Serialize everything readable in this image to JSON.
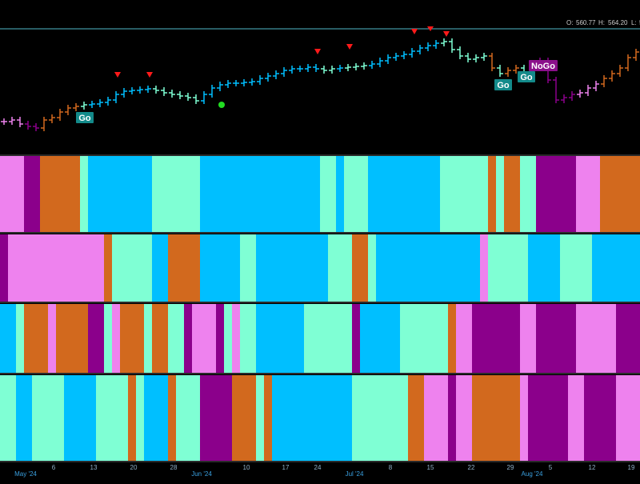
{
  "header": {
    "open_label": "O:",
    "open": "560.77",
    "high_label": "H:",
    "high": "564.20",
    "low_label": "L:",
    "low": "5"
  },
  "price_chart": {
    "ylim": [
      485.2,
      582.2
    ],
    "closes": [
      506.2,
      507.2,
      504.7,
      503.2,
      502.2,
      507.2,
      508.7,
      512.2,
      514.7,
      515.7,
      516.7,
      517.2,
      518.2,
      519.7,
      523.2,
      525.2,
      525.7,
      526.2,
      526.7,
      525.7,
      524.2,
      523.2,
      522.2,
      521.2,
      519.2,
      523.2,
      527.2,
      529.2,
      530.2,
      530.2,
      530.7,
      531.2,
      533.2,
      534.7,
      536.2,
      538.2,
      539.2,
      539.2,
      540.2,
      539.2,
      538.2,
      539.2,
      539.7,
      540.2,
      540.7,
      541.2,
      542.2,
      544.2,
      546.2,
      547.2,
      548.2,
      550.2,
      552.2,
      553.7,
      555.2,
      556.2,
      551.2,
      547.2,
      545.2,
      546.2,
      547.2,
      539.7,
      536.2,
      538.2,
      539.7,
      537.2,
      542.2,
      544.2,
      532.2,
      519.7,
      521.2,
      523.2,
      524.2,
      527.2,
      529.7,
      533.2,
      536.2,
      539.7,
      546.2,
      549.7
    ]
  },
  "signals": [
    "Go",
    "Go",
    "Go",
    "NoGo"
  ],
  "panels": [
    [
      {
        "color": "#ee82ee",
        "days": 3
      },
      {
        "color": "#8b008b",
        "days": 2
      },
      {
        "color": "#d2691e",
        "days": 5
      },
      {
        "color": "#7fffd4",
        "days": 1
      },
      {
        "color": "#00bfff",
        "days": 8
      },
      {
        "color": "#7fffd4",
        "days": 6
      },
      {
        "color": "#00bfff",
        "days": 15
      },
      {
        "color": "#7fffd4",
        "days": 2
      },
      {
        "color": "#00bfff",
        "days": 1
      },
      {
        "color": "#7fffd4",
        "days": 3
      },
      {
        "color": "#00bfff",
        "days": 9
      },
      {
        "color": "#7fffd4",
        "days": 6
      },
      {
        "color": "#d2691e",
        "days": 1
      },
      {
        "color": "#7fffd4",
        "days": 1
      },
      {
        "color": "#d2691e",
        "days": 2
      },
      {
        "color": "#7fffd4",
        "days": 2
      },
      {
        "color": "#8b008b",
        "days": 5
      },
      {
        "color": "#ee82ee",
        "days": 3
      },
      {
        "color": "#d2691e",
        "days": 5
      }
    ],
    [
      {
        "color": "#8b008b",
        "days": 1
      },
      {
        "color": "#ee82ee",
        "days": 12
      },
      {
        "color": "#d2691e",
        "days": 1
      },
      {
        "color": "#7fffd4",
        "days": 5
      },
      {
        "color": "#00bfff",
        "days": 2
      },
      {
        "color": "#d2691e",
        "days": 4
      },
      {
        "color": "#00bfff",
        "days": 5
      },
      {
        "color": "#7fffd4",
        "days": 2
      },
      {
        "color": "#00bfff",
        "days": 9
      },
      {
        "color": "#7fffd4",
        "days": 3
      },
      {
        "color": "#d2691e",
        "days": 2
      },
      {
        "color": "#7fffd4",
        "days": 1
      },
      {
        "color": "#00bfff",
        "days": 13
      },
      {
        "color": "#ee82ee",
        "days": 1
      },
      {
        "color": "#7fffd4",
        "days": 1
      },
      {
        "color": "#7fffd4",
        "days": 4
      },
      {
        "color": "#00bfff",
        "days": 4
      },
      {
        "color": "#7fffd4",
        "days": 4
      },
      {
        "color": "#00bfff",
        "days": 6
      }
    ],
    [
      {
        "color": "#00bfff",
        "days": 2
      },
      {
        "color": "#7fffd4",
        "days": 1
      },
      {
        "color": "#d2691e",
        "days": 3
      },
      {
        "color": "#ee82ee",
        "days": 1
      },
      {
        "color": "#d2691e",
        "days": 4
      },
      {
        "color": "#8b008b",
        "days": 2
      },
      {
        "color": "#7fffd4",
        "days": 1
      },
      {
        "color": "#ee82ee",
        "days": 1
      },
      {
        "color": "#d2691e",
        "days": 3
      },
      {
        "color": "#7fffd4",
        "days": 1
      },
      {
        "color": "#d2691e",
        "days": 2
      },
      {
        "color": "#7fffd4",
        "days": 2
      },
      {
        "color": "#8b008b",
        "days": 1
      },
      {
        "color": "#ee82ee",
        "days": 3
      },
      {
        "color": "#8b008b",
        "days": 1
      },
      {
        "color": "#7fffd4",
        "days": 1
      },
      {
        "color": "#ee82ee",
        "days": 1
      },
      {
        "color": "#7fffd4",
        "days": 2
      },
      {
        "color": "#00bfff",
        "days": 6
      },
      {
        "color": "#7fffd4",
        "days": 6
      },
      {
        "color": "#8b008b",
        "days": 1
      },
      {
        "color": "#00bfff",
        "days": 5
      },
      {
        "color": "#7fffd4",
        "days": 6
      },
      {
        "color": "#d2691e",
        "days": 1
      },
      {
        "color": "#ee82ee",
        "days": 2
      },
      {
        "color": "#8b008b",
        "days": 6
      },
      {
        "color": "#ee82ee",
        "days": 2
      },
      {
        "color": "#8b008b",
        "days": 5
      },
      {
        "color": "#ee82ee",
        "days": 5
      },
      {
        "color": "#8b008b",
        "days": 3
      }
    ],
    [
      {
        "color": "#7fffd4",
        "days": 2
      },
      {
        "color": "#00bfff",
        "days": 2
      },
      {
        "color": "#7fffd4",
        "days": 4
      },
      {
        "color": "#00bfff",
        "days": 4
      },
      {
        "color": "#7fffd4",
        "days": 4
      },
      {
        "color": "#d2691e",
        "days": 1
      },
      {
        "color": "#7fffd4",
        "days": 1
      },
      {
        "color": "#00bfff",
        "days": 3
      },
      {
        "color": "#d2691e",
        "days": 1
      },
      {
        "color": "#7fffd4",
        "days": 3
      },
      {
        "color": "#8b008b",
        "days": 4
      },
      {
        "color": "#d2691e",
        "days": 3
      },
      {
        "color": "#7fffd4",
        "days": 1
      },
      {
        "color": "#d2691e",
        "days": 1
      },
      {
        "color": "#00bfff",
        "days": 10
      },
      {
        "color": "#7fffd4",
        "days": 7
      },
      {
        "color": "#d2691e",
        "days": 2
      },
      {
        "color": "#ee82ee",
        "days": 3
      },
      {
        "color": "#8b008b",
        "days": 1
      },
      {
        "color": "#ee82ee",
        "days": 2
      },
      {
        "color": "#d2691e",
        "days": 6
      },
      {
        "color": "#ee82ee",
        "days": 1
      },
      {
        "color": "#8b008b",
        "days": 5
      },
      {
        "color": "#ee82ee",
        "days": 2
      },
      {
        "color": "#8b008b",
        "days": 4
      },
      {
        "color": "#ee82ee",
        "days": 3
      }
    ]
  ],
  "x_axis": {
    "labels": [
      "May '24",
      "6",
      "13",
      "20",
      "28",
      "Jun '24",
      "10",
      "17",
      "24",
      "Jul '24",
      "8",
      "15",
      "22",
      "29",
      "Aug '24",
      "5",
      "12",
      "19"
    ]
  }
}
